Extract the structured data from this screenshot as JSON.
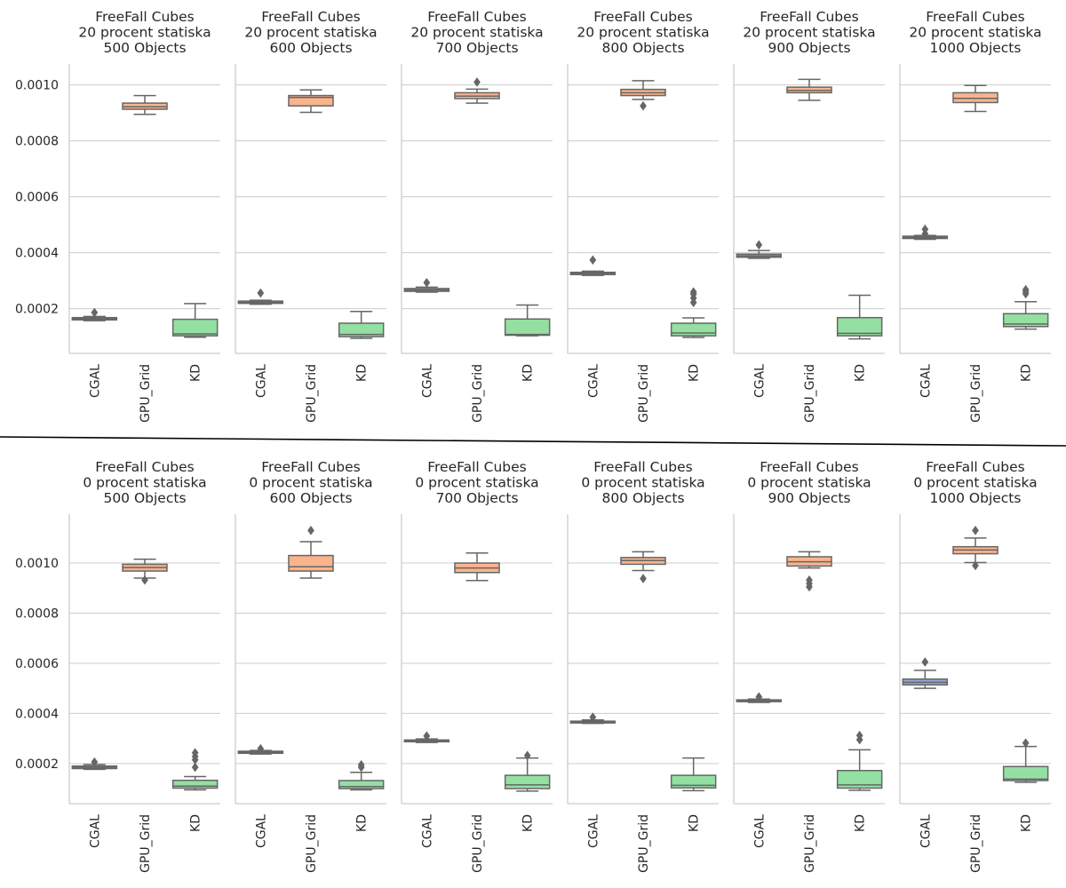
{
  "colors": {
    "CGAL": "#92a8d1",
    "GPU_Grid": "#f9b48e",
    "KD": "#94e0a3",
    "box_edge": "#666666",
    "grid": "#cccccc",
    "axis": "#cccccc",
    "text": "#262626"
  },
  "chart_data": [
    {
      "type": "box",
      "title": [
        "FreeFall Cubes",
        "20 procent statiska",
        "500 Objects"
      ],
      "categories": [
        "CGAL",
        "GPU_Grid",
        "KD"
      ],
      "ylim": [
        4e-05,
        0.001075
      ],
      "yticks": [
        "0.0002",
        "0.0004",
        "0.0006",
        "0.0008",
        "0.0010"
      ],
      "grid": true,
      "boxes": [
        {
          "min": 0.000157,
          "q1": 0.00016,
          "median": 0.000164,
          "q3": 0.000168,
          "max": 0.000172,
          "outliers": [
            0.000186
          ]
        },
        {
          "min": 0.000895,
          "q1": 0.000913,
          "median": 0.000922,
          "q3": 0.000935,
          "max": 0.000962,
          "outliers": []
        },
        {
          "min": 9.8e-05,
          "q1": 0.000103,
          "median": 0.00011,
          "q3": 0.000162,
          "max": 0.000218,
          "outliers": []
        }
      ]
    },
    {
      "type": "box",
      "title": [
        "FreeFall Cubes",
        "20 procent statiska",
        "600 Objects"
      ],
      "categories": [
        "CGAL",
        "GPU_Grid",
        "KD"
      ],
      "ylim": [
        4e-05,
        0.001075
      ],
      "yticks": [
        "0.0002",
        "0.0004",
        "0.0006",
        "0.0008",
        "0.0010"
      ],
      "grid": true,
      "boxes": [
        {
          "min": 0.000216,
          "q1": 0.000219,
          "median": 0.000223,
          "q3": 0.000227,
          "max": 0.00023,
          "outliers": [
            0.000256
          ]
        },
        {
          "min": 0.000902,
          "q1": 0.000925,
          "median": 0.000955,
          "q3": 0.000962,
          "max": 0.000982,
          "outliers": []
        },
        {
          "min": 9.4e-05,
          "q1": 0.0001,
          "median": 0.000108,
          "q3": 0.000148,
          "max": 0.00019,
          "outliers": []
        }
      ]
    },
    {
      "type": "box",
      "title": [
        "FreeFall Cubes",
        "20 procent statiska",
        "700 Objects"
      ],
      "categories": [
        "CGAL",
        "GPU_Grid",
        "KD"
      ],
      "ylim": [
        4e-05,
        0.001075
      ],
      "yticks": [
        "0.0002",
        "0.0004",
        "0.0006",
        "0.0008",
        "0.0010"
      ],
      "grid": true,
      "boxes": [
        {
          "min": 0.000259,
          "q1": 0.000262,
          "median": 0.000267,
          "q3": 0.000272,
          "max": 0.000277,
          "outliers": [
            0.000293
          ]
        },
        {
          "min": 0.000935,
          "q1": 0.000951,
          "median": 0.00096,
          "q3": 0.000972,
          "max": 0.000985,
          "outliers": [
            0.00101
          ]
        },
        {
          "min": 0.000103,
          "q1": 0.000105,
          "median": 0.000108,
          "q3": 0.000163,
          "max": 0.000213,
          "outliers": []
        }
      ]
    },
    {
      "type": "box",
      "title": [
        "FreeFall Cubes",
        "20 procent statiska",
        "800 Objects"
      ],
      "categories": [
        "CGAL",
        "GPU_Grid",
        "KD"
      ],
      "ylim": [
        4e-05,
        0.001075
      ],
      "yticks": [
        "0.0002",
        "0.0004",
        "0.0006",
        "0.0008",
        "0.0010"
      ],
      "grid": true,
      "boxes": [
        {
          "min": 0.000319,
          "q1": 0.000322,
          "median": 0.000326,
          "q3": 0.00033,
          "max": 0.000334,
          "outliers": [
            0.000374
          ]
        },
        {
          "min": 0.000948,
          "q1": 0.000962,
          "median": 0.000972,
          "q3": 0.000984,
          "max": 0.001015,
          "outliers": [
            0.000925
          ]
        },
        {
          "min": 9.7e-05,
          "q1": 0.000103,
          "median": 0.000113,
          "q3": 0.000148,
          "max": 0.000167,
          "outliers": [
            0.000222,
            0.000238,
            0.000252,
            0.00026
          ]
        }
      ]
    },
    {
      "type": "box",
      "title": [
        "FreeFall Cubes",
        "20 procent statiska",
        "900 Objects"
      ],
      "categories": [
        "CGAL",
        "GPU_Grid",
        "KD"
      ],
      "ylim": [
        4e-05,
        0.001075
      ],
      "yticks": [
        "0.0002",
        "0.0004",
        "0.0006",
        "0.0008",
        "0.0010"
      ],
      "grid": true,
      "boxes": [
        {
          "min": 0.00038,
          "q1": 0.000384,
          "median": 0.000389,
          "q3": 0.000395,
          "max": 0.000408,
          "outliers": [
            0.000428
          ]
        },
        {
          "min": 0.000945,
          "q1": 0.000972,
          "median": 0.00098,
          "q3": 0.000992,
          "max": 0.00102,
          "outliers": []
        },
        {
          "min": 9.2e-05,
          "q1": 0.000103,
          "median": 0.000112,
          "q3": 0.000168,
          "max": 0.000248,
          "outliers": []
        }
      ]
    },
    {
      "type": "box",
      "title": [
        "FreeFall Cubes",
        "20 procent statiska",
        "1000 Objects"
      ],
      "categories": [
        "CGAL",
        "GPU_Grid",
        "KD"
      ],
      "ylim": [
        4e-05,
        0.001075
      ],
      "yticks": [
        "0.0002",
        "0.0004",
        "0.0006",
        "0.0008",
        "0.0010"
      ],
      "grid": true,
      "boxes": [
        {
          "min": 0.000448,
          "q1": 0.000451,
          "median": 0.000455,
          "q3": 0.000459,
          "max": 0.000462,
          "outliers": [
            0.000468,
            0.000484
          ]
        },
        {
          "min": 0.000905,
          "q1": 0.000937,
          "median": 0.000952,
          "q3": 0.000972,
          "max": 0.000998,
          "outliers": []
        },
        {
          "min": 0.000127,
          "q1": 0.000136,
          "median": 0.000145,
          "q3": 0.000182,
          "max": 0.000225,
          "outliers": [
            0.000253,
            0.000261,
            0.000268
          ]
        }
      ]
    },
    {
      "type": "box",
      "title": [
        "FreeFall Cubes",
        "0 procent statiska",
        "500 Objects"
      ],
      "categories": [
        "CGAL",
        "GPU_Grid",
        "KD"
      ],
      "ylim": [
        4e-05,
        0.001195
      ],
      "yticks": [
        "0.0002",
        "0.0004",
        "0.0006",
        "0.0008",
        "0.0010"
      ],
      "grid": true,
      "boxes": [
        {
          "min": 0.000177,
          "q1": 0.00018,
          "median": 0.000185,
          "q3": 0.00019,
          "max": 0.000196,
          "outliers": [
            0.000206
          ]
        },
        {
          "min": 0.00094,
          "q1": 0.000968,
          "median": 0.000982,
          "q3": 0.000995,
          "max": 0.001015,
          "outliers": [
            0.000932
          ]
        },
        {
          "min": 9.5e-05,
          "q1": 0.000102,
          "median": 0.00011,
          "q3": 0.000133,
          "max": 0.000148,
          "outliers": [
            0.000185,
            0.000215,
            0.000228,
            0.000243
          ]
        }
      ]
    },
    {
      "type": "box",
      "title": [
        "FreeFall Cubes",
        "0 procent statiska",
        "600 Objects"
      ],
      "categories": [
        "CGAL",
        "GPU_Grid",
        "KD"
      ],
      "ylim": [
        4e-05,
        0.001195
      ],
      "yticks": [
        "0.0002",
        "0.0004",
        "0.0006",
        "0.0008",
        "0.0010"
      ],
      "grid": true,
      "boxes": [
        {
          "min": 0.000238,
          "q1": 0.000241,
          "median": 0.000245,
          "q3": 0.000249,
          "max": 0.000252,
          "outliers": [
            0.000259
          ]
        },
        {
          "min": 0.00094,
          "q1": 0.000968,
          "median": 0.000985,
          "q3": 0.00103,
          "max": 0.001085,
          "outliers": [
            0.00113
          ]
        },
        {
          "min": 9.5e-05,
          "q1": 0.0001,
          "median": 0.000108,
          "q3": 0.000132,
          "max": 0.000165,
          "outliers": [
            0.000185,
            0.000195
          ]
        }
      ]
    },
    {
      "type": "box",
      "title": [
        "FreeFall Cubes",
        "0 procent statiska",
        "700 Objects"
      ],
      "categories": [
        "CGAL",
        "GPU_Grid",
        "KD"
      ],
      "ylim": [
        4e-05,
        0.001195
      ],
      "yticks": [
        "0.0002",
        "0.0004",
        "0.0006",
        "0.0008",
        "0.0010"
      ],
      "grid": true,
      "boxes": [
        {
          "min": 0.000284,
          "q1": 0.000287,
          "median": 0.00029,
          "q3": 0.000294,
          "max": 0.000298,
          "outliers": [
            0.00031
          ]
        },
        {
          "min": 0.00093,
          "q1": 0.000962,
          "median": 0.00098,
          "q3": 0.001,
          "max": 0.00104,
          "outliers": []
        },
        {
          "min": 9e-05,
          "q1": 0.0001,
          "median": 0.000115,
          "q3": 0.000153,
          "max": 0.000222,
          "outliers": [
            0.000232
          ]
        }
      ]
    },
    {
      "type": "box",
      "title": [
        "FreeFall Cubes",
        "0 procent statiska",
        "800 Objects"
      ],
      "categories": [
        "CGAL",
        "GPU_Grid",
        "KD"
      ],
      "ylim": [
        4e-05,
        0.001195
      ],
      "yticks": [
        "0.0002",
        "0.0004",
        "0.0006",
        "0.0008",
        "0.0010"
      ],
      "grid": true,
      "boxes": [
        {
          "min": 0.00036,
          "q1": 0.000362,
          "median": 0.000365,
          "q3": 0.000369,
          "max": 0.000374,
          "outliers": [
            0.000385
          ]
        },
        {
          "min": 0.00097,
          "q1": 0.000995,
          "median": 0.00101,
          "q3": 0.001022,
          "max": 0.001045,
          "outliers": [
            0.000938
          ]
        },
        {
          "min": 9.2e-05,
          "q1": 0.000103,
          "median": 0.000113,
          "q3": 0.000153,
          "max": 0.000222,
          "outliers": []
        }
      ]
    },
    {
      "type": "box",
      "title": [
        "FreeFall Cubes",
        "0 procent statiska",
        "900 Objects"
      ],
      "categories": [
        "CGAL",
        "GPU_Grid",
        "KD"
      ],
      "ylim": [
        4e-05,
        0.001195
      ],
      "yticks": [
        "0.0002",
        "0.0004",
        "0.0006",
        "0.0008",
        "0.0010"
      ],
      "grid": true,
      "boxes": [
        {
          "min": 0.000444,
          "q1": 0.000447,
          "median": 0.00045,
          "q3": 0.000454,
          "max": 0.000457,
          "outliers": [
            0.000466
          ]
        },
        {
          "min": 0.00098,
          "q1": 0.000988,
          "median": 0.001005,
          "q3": 0.001025,
          "max": 0.001045,
          "outliers": [
            0.000905,
            0.000918,
            0.000932
          ]
        },
        {
          "min": 9.3e-05,
          "q1": 0.000102,
          "median": 0.000115,
          "q3": 0.000172,
          "max": 0.000255,
          "outliers": [
            0.000295,
            0.000312
          ]
        }
      ]
    },
    {
      "type": "box",
      "title": [
        "FreeFall Cubes",
        "0 procent statiska",
        "1000 Objects"
      ],
      "categories": [
        "CGAL",
        "GPU_Grid",
        "KD"
      ],
      "ylim": [
        4e-05,
        0.001195
      ],
      "yticks": [
        "0.0002",
        "0.0004",
        "0.0006",
        "0.0008",
        "0.0010"
      ],
      "grid": true,
      "boxes": [
        {
          "min": 0.0005,
          "q1": 0.000514,
          "median": 0.000524,
          "q3": 0.000537,
          "max": 0.000572,
          "outliers": [
            0.000605
          ]
        },
        {
          "min": 0.001002,
          "q1": 0.001037,
          "median": 0.001052,
          "q3": 0.001065,
          "max": 0.0011,
          "outliers": [
            0.00099,
            0.00113
          ]
        },
        {
          "min": 0.000125,
          "q1": 0.000132,
          "median": 0.000138,
          "q3": 0.000188,
          "max": 0.000268,
          "outliers": [
            0.000282
          ]
        }
      ]
    }
  ]
}
